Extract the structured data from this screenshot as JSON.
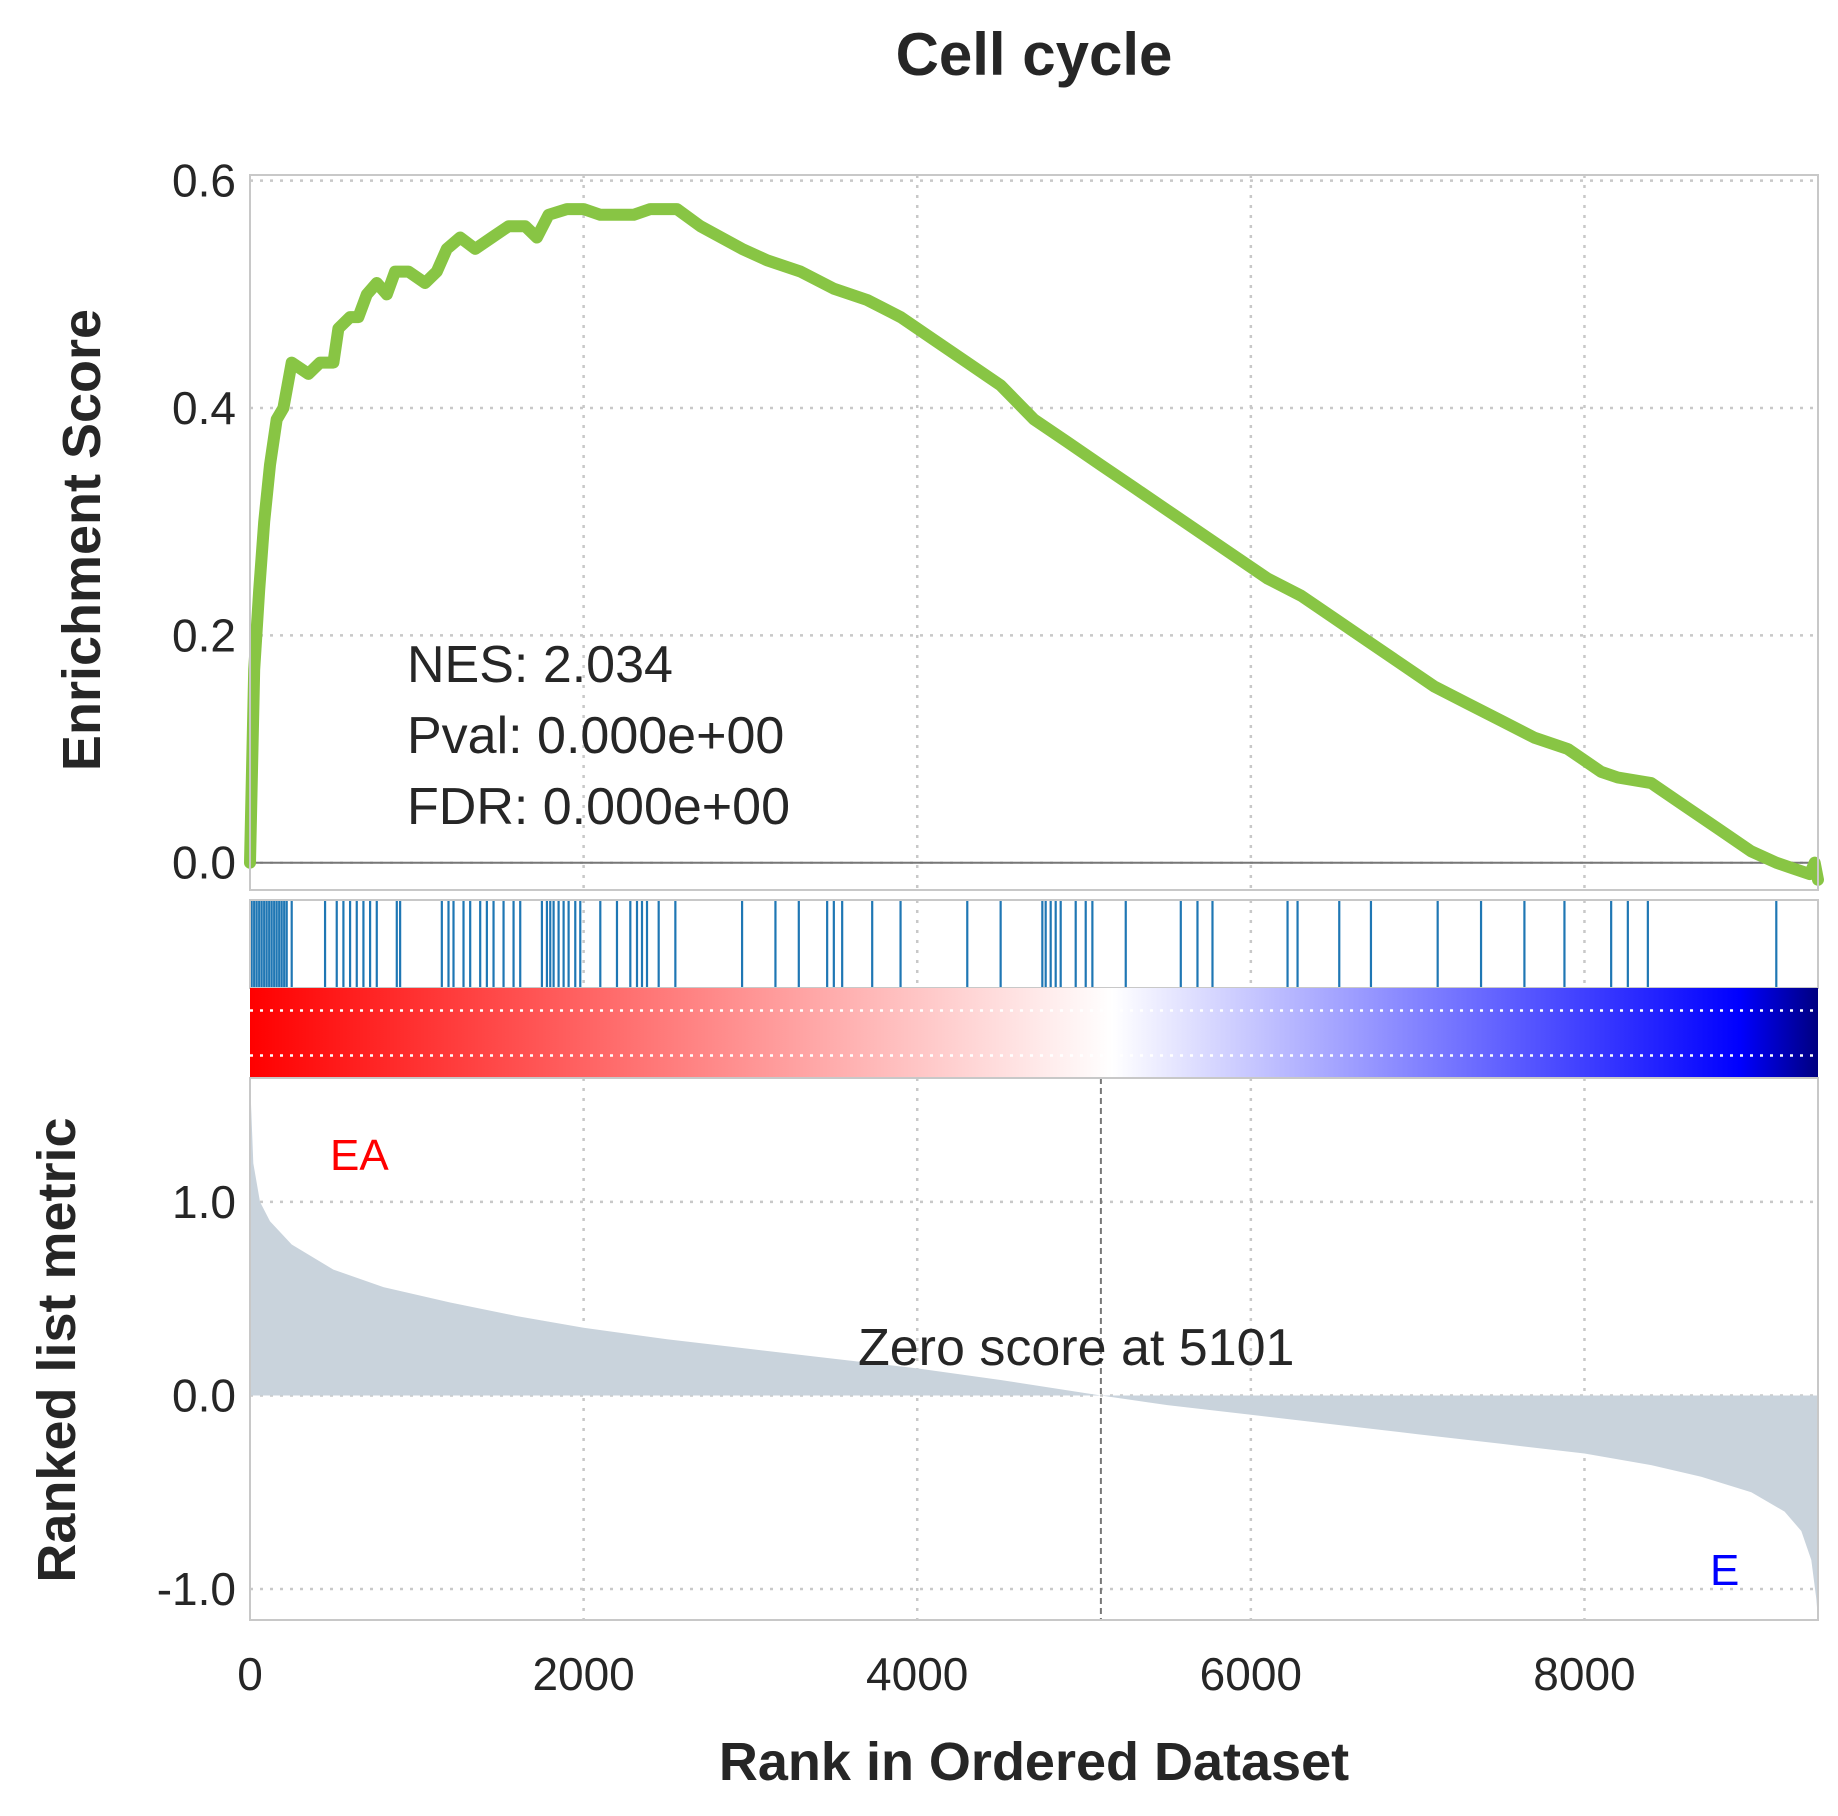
{
  "chart_data": {
    "type": "line",
    "title": "Cell cycle",
    "xlabel": "Rank in Ordered Dataset",
    "xlim": [
      0,
      9400
    ],
    "x_ticks": [
      0,
      2000,
      4000,
      6000,
      8000
    ],
    "x_tick_labels": [
      "0",
      "2000",
      "4000",
      "6000",
      "8000"
    ],
    "grid": true,
    "enrichment_panel": {
      "ylabel": "Enrichment Score",
      "ylim": [
        -0.024,
        0.605
      ],
      "y_ticks": [
        0.0,
        0.2,
        0.4,
        0.6
      ],
      "y_tick_labels": [
        "0.0",
        "0.2",
        "0.4",
        "0.6"
      ],
      "line_color": "#88c544",
      "points": [
        [
          0,
          0.0
        ],
        [
          25,
          0.17
        ],
        [
          55,
          0.24
        ],
        [
          85,
          0.3
        ],
        [
          120,
          0.35
        ],
        [
          160,
          0.39
        ],
        [
          200,
          0.4
        ],
        [
          250,
          0.44
        ],
        [
          350,
          0.43
        ],
        [
          420,
          0.44
        ],
        [
          500,
          0.44
        ],
        [
          530,
          0.47
        ],
        [
          600,
          0.48
        ],
        [
          650,
          0.48
        ],
        [
          700,
          0.5
        ],
        [
          760,
          0.51
        ],
        [
          820,
          0.5
        ],
        [
          870,
          0.52
        ],
        [
          950,
          0.52
        ],
        [
          1050,
          0.51
        ],
        [
          1120,
          0.52
        ],
        [
          1180,
          0.54
        ],
        [
          1260,
          0.55
        ],
        [
          1350,
          0.54
        ],
        [
          1450,
          0.55
        ],
        [
          1550,
          0.56
        ],
        [
          1650,
          0.56
        ],
        [
          1720,
          0.55
        ],
        [
          1790,
          0.57
        ],
        [
          1900,
          0.575
        ],
        [
          2000,
          0.575
        ],
        [
          2100,
          0.57
        ],
        [
          2200,
          0.57
        ],
        [
          2300,
          0.57
        ],
        [
          2400,
          0.575
        ],
        [
          2500,
          0.575
        ],
        [
          2560,
          0.575
        ],
        [
          2700,
          0.56
        ],
        [
          2950,
          0.54
        ],
        [
          3100,
          0.53
        ],
        [
          3300,
          0.52
        ],
        [
          3500,
          0.505
        ],
        [
          3700,
          0.495
        ],
        [
          3900,
          0.48
        ],
        [
          4100,
          0.46
        ],
        [
          4300,
          0.44
        ],
        [
          4500,
          0.42
        ],
        [
          4700,
          0.39
        ],
        [
          4900,
          0.37
        ],
        [
          5100,
          0.35
        ],
        [
          5300,
          0.33
        ],
        [
          5500,
          0.31
        ],
        [
          5700,
          0.29
        ],
        [
          5900,
          0.27
        ],
        [
          6100,
          0.25
        ],
        [
          6300,
          0.235
        ],
        [
          6500,
          0.215
        ],
        [
          6700,
          0.195
        ],
        [
          6900,
          0.175
        ],
        [
          7100,
          0.155
        ],
        [
          7300,
          0.14
        ],
        [
          7500,
          0.125
        ],
        [
          7700,
          0.11
        ],
        [
          7900,
          0.1
        ],
        [
          8100,
          0.08
        ],
        [
          8200,
          0.075
        ],
        [
          8400,
          0.07
        ],
        [
          8600,
          0.05
        ],
        [
          8800,
          0.03
        ],
        [
          9000,
          0.01
        ],
        [
          9150,
          0.0
        ],
        [
          9250,
          -0.005
        ],
        [
          9350,
          -0.01
        ],
        [
          9380,
          0.0
        ],
        [
          9400,
          -0.015
        ]
      ]
    },
    "hits": {
      "color": "#1f77b4",
      "positions": [
        10,
        25,
        40,
        55,
        70,
        85,
        100,
        115,
        130,
        145,
        160,
        175,
        190,
        205,
        220,
        250,
        450,
        520,
        560,
        600,
        640,
        680,
        720,
        760,
        880,
        900,
        1150,
        1190,
        1220,
        1280,
        1320,
        1380,
        1420,
        1460,
        1520,
        1580,
        1620,
        1750,
        1780,
        1800,
        1820,
        1850,
        1880,
        1910,
        1950,
        1980,
        2100,
        2200,
        2280,
        2320,
        2350,
        2380,
        2450,
        2550,
        2950,
        3150,
        3290,
        3460,
        3500,
        3550,
        3730,
        3900,
        4300,
        4500,
        4750,
        4770,
        4800,
        4830,
        4860,
        4950,
        5010,
        5050,
        5250,
        5580,
        5680,
        5770,
        6220,
        6280,
        6530,
        6720,
        7120,
        7380,
        7640,
        7880,
        8160,
        8260,
        8380,
        9150
      ]
    },
    "colorbar": {
      "colors": [
        "#ff0000",
        "#ffffff",
        "#0000ff",
        "#000080"
      ]
    },
    "ranked_panel": {
      "ylabel": "Ranked list metric",
      "ylim": [
        -1.16,
        1.64
      ],
      "y_ticks": [
        -1.0,
        0.0,
        1.0
      ],
      "y_tick_labels": [
        "-1.0",
        "0.0",
        "1.0"
      ],
      "fill_color": "#c9d3dc",
      "points": [
        [
          0,
          1.64
        ],
        [
          20,
          1.2
        ],
        [
          60,
          1.0
        ],
        [
          120,
          0.9
        ],
        [
          250,
          0.78
        ],
        [
          500,
          0.65
        ],
        [
          800,
          0.56
        ],
        [
          1200,
          0.48
        ],
        [
          1600,
          0.41
        ],
        [
          2000,
          0.35
        ],
        [
          2500,
          0.29
        ],
        [
          3000,
          0.24
        ],
        [
          3500,
          0.19
        ],
        [
          4000,
          0.14
        ],
        [
          4500,
          0.08
        ],
        [
          5101,
          0.0
        ],
        [
          5500,
          -0.05
        ],
        [
          6000,
          -0.1
        ],
        [
          6500,
          -0.15
        ],
        [
          7000,
          -0.2
        ],
        [
          7500,
          -0.25
        ],
        [
          8000,
          -0.3
        ],
        [
          8400,
          -0.36
        ],
        [
          8700,
          -0.42
        ],
        [
          9000,
          -0.5
        ],
        [
          9200,
          -0.6
        ],
        [
          9300,
          -0.7
        ],
        [
          9360,
          -0.85
        ],
        [
          9390,
          -1.05
        ],
        [
          9400,
          -1.16
        ]
      ],
      "zero_cross": 5101,
      "zero_label": "Zero score at 5101",
      "pos_label": "EA",
      "neg_label": "E",
      "pos_color": "#ff0000",
      "neg_color": "#0000ff"
    },
    "stats": {
      "nes": "NES: 2.034",
      "pval": "Pval: 0.000e+00",
      "fdr": "FDR: 0.000e+00"
    }
  }
}
